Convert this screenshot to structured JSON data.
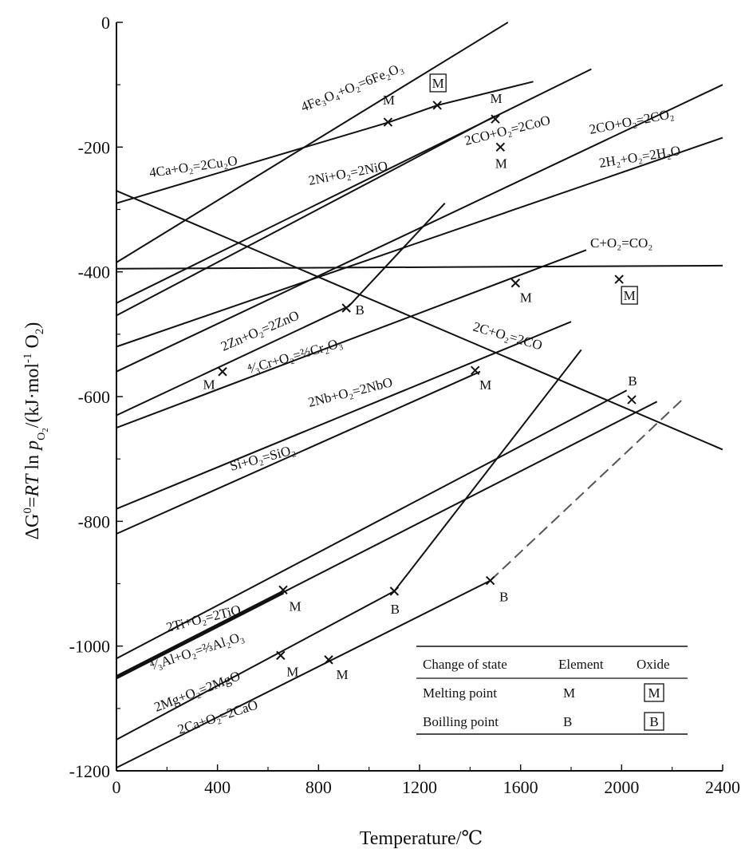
{
  "chart_data": {
    "type": "line",
    "title": "",
    "xlabel": "Temperature/℃",
    "ylabel": "ΔG⁰=RT ln pₒ₂/(kJ·mol⁻¹ O₂)",
    "xlim": [
      0,
      2400
    ],
    "ylim": [
      -1200,
      0
    ],
    "x_ticks": [
      "0",
      "400",
      "800",
      "1200",
      "1600",
      "2000",
      "2400"
    ],
    "y_ticks": [
      "0",
      "-200",
      "-400",
      "-600",
      "-800",
      "-1000",
      "-1200"
    ],
    "grid": false,
    "series": [
      {
        "name": "4Fe₃O₄+O₂=6Fe₂O₃",
        "x": [
          0,
          1550
        ],
        "y": [
          -385,
          0
        ]
      },
      {
        "name": "4Ca+O₂=2Cu₂O",
        "x": [
          0,
          1080,
          1270,
          1650
        ],
        "y": [
          -290,
          -160,
          -133,
          -95
        ]
      },
      {
        "name": "2Ni+O₂=2NiO",
        "x": [
          0,
          1880
        ],
        "y": [
          -450,
          -75
        ]
      },
      {
        "name": "2CO+O₂=2CoO",
        "x": [
          0,
          1500
        ],
        "y": [
          -470,
          -150
        ]
      },
      {
        "name": "2CO+O₂=2CO₂",
        "x": [
          0,
          2400
        ],
        "y": [
          -560,
          -100
        ]
      },
      {
        "name": "2H₂+O₂=2H₂O",
        "x": [
          0,
          2400
        ],
        "y": [
          -520,
          -185
        ]
      },
      {
        "name": "C+O₂=CO₂",
        "x": [
          0,
          2400
        ],
        "y": [
          -395,
          -390
        ]
      },
      {
        "name": "2C+O₂=2CO",
        "x": [
          0,
          2400
        ],
        "y": [
          -270,
          -685
        ]
      },
      {
        "name": "2Zn+O₂=2ZnO",
        "x": [
          0,
          920,
          1300
        ],
        "y": [
          -630,
          -455,
          -290
        ]
      },
      {
        "name": "⁴⁄₃Cr+O₂=⅔Cr₂O₃",
        "x": [
          0,
          1860
        ],
        "y": [
          -650,
          -365
        ]
      },
      {
        "name": "2Nb+O₂=2NbO",
        "x": [
          0,
          1800
        ],
        "y": [
          -780,
          -480
        ]
      },
      {
        "name": "Si+O₂=SiO₂",
        "x": [
          0,
          1440
        ],
        "y": [
          -820,
          -560
        ]
      },
      {
        "name": "2Ti+O₂=2TiO",
        "x": [
          0,
          2020
        ],
        "y": [
          -1020,
          -590
        ]
      },
      {
        "name": "⁴⁄₃Al+O₂=⅔Al₂O₃",
        "x": [
          0,
          2140
        ],
        "y": [
          -1050,
          -608
        ]
      },
      {
        "name": "2Mg+O₂=2MgO",
        "x": [
          0,
          1100,
          1840
        ],
        "y": [
          -1150,
          -912,
          -525
        ]
      },
      {
        "name": "2Ca+O₂=2CaO",
        "x": [
          0,
          1480
        ],
        "y": [
          -1195,
          -895
        ]
      },
      {
        "name": "2Ca+O₂=2CaO (B)",
        "x": [
          1480,
          2240
        ],
        "y": [
          -895,
          -605
        ],
        "dashed": true
      }
    ],
    "markers": [
      {
        "x": 1075,
        "y": -160,
        "type": "M",
        "boxed": false,
        "label": "M"
      },
      {
        "x": 1270,
        "y": -133,
        "type": "M",
        "boxed": true,
        "label": "M"
      },
      {
        "x": 1500,
        "y": -155,
        "type": "M",
        "boxed": false,
        "label": "M"
      },
      {
        "x": 1520,
        "y": -200,
        "type": "M",
        "boxed": false,
        "label": "M"
      },
      {
        "x": 910,
        "y": -458,
        "type": "B",
        "boxed": false,
        "label": "B"
      },
      {
        "x": 1580,
        "y": -418,
        "type": "M",
        "boxed": false,
        "label": "M"
      },
      {
        "x": 1990,
        "y": -412,
        "type": "M",
        "boxed": true,
        "label": "M"
      },
      {
        "x": 420,
        "y": -560,
        "type": "M",
        "boxed": false,
        "label": "M"
      },
      {
        "x": 1420,
        "y": -558,
        "type": "M",
        "boxed": false,
        "label": "M"
      },
      {
        "x": 2040,
        "y": -605,
        "type": "B",
        "boxed": false,
        "label": "B"
      },
      {
        "x": 660,
        "y": -910,
        "type": "M",
        "boxed": false,
        "label": "M"
      },
      {
        "x": 1100,
        "y": -912,
        "type": "B",
        "boxed": false,
        "label": "B"
      },
      {
        "x": 1480,
        "y": -895,
        "type": "B",
        "boxed": false,
        "label": "B"
      },
      {
        "x": 650,
        "y": -1015,
        "type": "M",
        "boxed": false,
        "label": "M"
      },
      {
        "x": 840,
        "y": -1022,
        "type": "M",
        "boxed": false,
        "label": "M"
      }
    ],
    "legend": {
      "placement": "bottom-right",
      "headers": [
        "Change of state",
        "Element",
        "Oxide"
      ],
      "rows": [
        {
          "label": "Melting point",
          "element": "M",
          "oxide": "M"
        },
        {
          "label": "Boilling point",
          "element": "B",
          "oxide": "B"
        }
      ]
    }
  }
}
